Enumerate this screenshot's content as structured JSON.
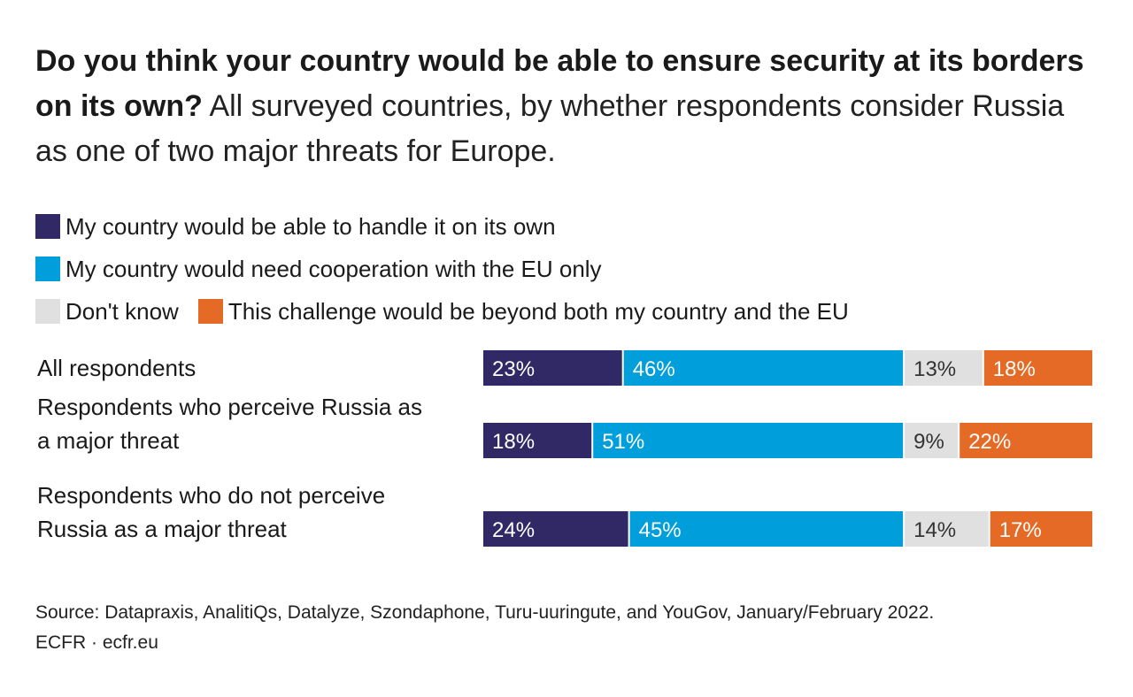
{
  "title": {
    "bold": "Do you think your country would be able to ensure security at its borders on its own?",
    "subtitle": "All surveyed countries, by whether respondents consider Russia as one of two major threats for Europe."
  },
  "colors": {
    "own": "#312866",
    "eu": "#009fdb",
    "dontknow": "#e0e0e0",
    "beyond": "#e56a25"
  },
  "legend": [
    {
      "label": "My country would be able to handle it on its own",
      "color": "#312866"
    },
    {
      "label": "My country would need cooperation with the EU only",
      "color": "#009fdb"
    },
    {
      "label": "Don't know",
      "color": "#e0e0e0"
    },
    {
      "label": "This challenge would be beyond both my country and the EU",
      "color": "#e56a25"
    }
  ],
  "chart_data": {
    "type": "bar",
    "orientation": "horizontal",
    "stacked": true,
    "categories": [
      [
        "All respondents"
      ],
      [
        "Respondents who perceive Russia as",
        "a major threat"
      ],
      [
        "Respondents who do not perceive",
        "Russia as a major threat"
      ]
    ],
    "series": [
      {
        "name": "My country would be able to handle it on its own",
        "values": [
          23,
          18,
          24
        ],
        "labels": [
          "23%",
          "18%",
          "24%"
        ]
      },
      {
        "name": "My country would need cooperation with the EU only",
        "values": [
          46,
          51,
          45
        ],
        "labels": [
          "46%",
          "51%",
          "45%"
        ]
      },
      {
        "name": "Don't know",
        "values": [
          13,
          9,
          14
        ],
        "labels": [
          "13%",
          "9%",
          "14%"
        ]
      },
      {
        "name": "This challenge would be beyond both my country and the EU",
        "values": [
          18,
          22,
          17
        ],
        "labels": [
          "18%",
          "22%",
          "17%"
        ]
      }
    ],
    "xlim": [
      0,
      100
    ],
    "grid": false,
    "legend_position": "top-left"
  },
  "footer": {
    "source": "Source: Datapraxis, AnalitiQs, Datalyze, Szondaphone, Turu-uuringute, and YouGov, January/February 2022.",
    "credit": "ECFR · ecfr.eu"
  }
}
